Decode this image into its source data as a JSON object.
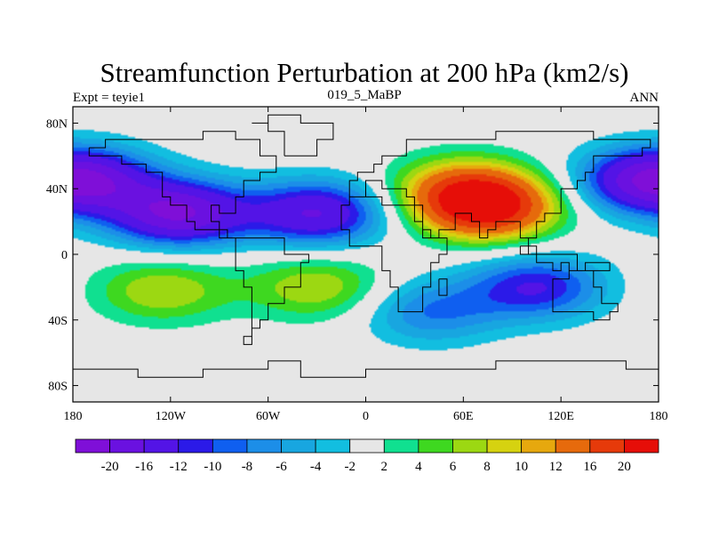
{
  "chart_data": {
    "type": "heatmap",
    "title": "Streamfunction Perturbation at 200 hPa (km2/s)",
    "left_string": "Expt = teyie1",
    "center_string": "019_5_MaBP",
    "right_string": "ANN",
    "x_ticks": [
      "180",
      "120W",
      "60W",
      "0",
      "60E",
      "120E",
      "180"
    ],
    "x_tick_values": [
      -180,
      -120,
      -60,
      0,
      60,
      120,
      180
    ],
    "y_ticks": [
      "80N",
      "40N",
      "0",
      "40S",
      "80S"
    ],
    "y_tick_values": [
      80,
      40,
      0,
      -40,
      -80
    ],
    "xlim": [
      -180,
      180
    ],
    "ylim": [
      -90,
      90
    ],
    "colorbar": {
      "labels": [
        "-20",
        "-16",
        "-12",
        "-10",
        "-8",
        "-6",
        "-4",
        "-2",
        "2",
        "4",
        "6",
        "8",
        "10",
        "12",
        "16",
        "20"
      ],
      "levels": [
        -20,
        -16,
        -12,
        -10,
        -8,
        -6,
        -4,
        -2,
        2,
        4,
        6,
        8,
        10,
        12,
        16,
        20
      ],
      "colors": [
        "#7f0fd8",
        "#6a11e0",
        "#5314e6",
        "#2b1ae8",
        "#0f5ff0",
        "#1c8ee8",
        "#18a6e0",
        "#12bee0",
        "#e6e6e6",
        "#10e090",
        "#3ed820",
        "#9cd812",
        "#d6d210",
        "#e6a80e",
        "#e66a0c",
        "#e63a0a",
        "#e60e08"
      ]
    },
    "features": [
      {
        "type": "high",
        "lon": 75,
        "lat": 28,
        "value": 20
      },
      {
        "type": "high",
        "lon": 60,
        "lat": 40,
        "value": 12
      },
      {
        "type": "high",
        "lon": -125,
        "lat": -22,
        "value": 8
      },
      {
        "type": "high",
        "lon": -30,
        "lat": -20,
        "value": 8
      },
      {
        "type": "low",
        "lon": -115,
        "lat": 25,
        "value": -20
      },
      {
        "type": "low",
        "lon": -30,
        "lat": 25,
        "value": -16
      },
      {
        "type": "low",
        "lon": -170,
        "lat": 45,
        "value": -12
      },
      {
        "type": "low",
        "lon": 170,
        "lat": 45,
        "value": -12
      },
      {
        "type": "low",
        "lon": 105,
        "lat": -20,
        "value": -12
      },
      {
        "type": "low",
        "lon": 40,
        "lat": -35,
        "value": -8
      }
    ]
  }
}
